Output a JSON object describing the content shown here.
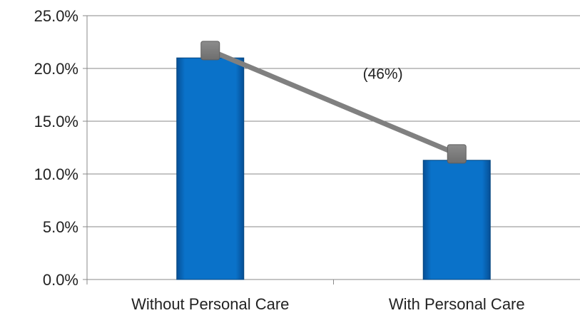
{
  "chart_data": {
    "type": "bar",
    "categories": [
      "Without Personal Care",
      "With Personal Care"
    ],
    "series": [
      {
        "type": "bar",
        "values": [
          21.0,
          11.3
        ],
        "color": "#0a72c9"
      },
      {
        "type": "line",
        "values": [
          21.7,
          11.9
        ],
        "color": "#808080"
      }
    ],
    "y_tick_labels": [
      "0.0%",
      "5.0%",
      "10.0%",
      "15.0%",
      "20.0%",
      "25.0%"
    ],
    "ylim": [
      0,
      25
    ],
    "grid": true,
    "legend": "none",
    "annotation": {
      "text": "(46%)",
      "x": 0.6,
      "y": 19.5
    }
  }
}
